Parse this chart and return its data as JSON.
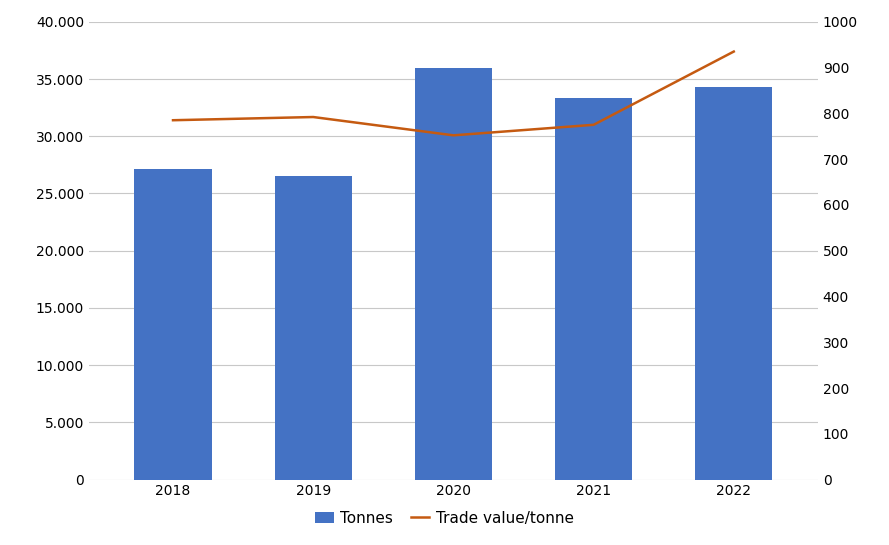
{
  "years": [
    "2018",
    "2019",
    "2020",
    "2021",
    "2022"
  ],
  "tonnes": [
    27100,
    26500,
    36000,
    33300,
    34300
  ],
  "trade_value": [
    785,
    792,
    752,
    775,
    935
  ],
  "bar_color": "#4472C4",
  "line_color": "#C55A11",
  "left_ylim": [
    0,
    40000
  ],
  "right_ylim": [
    0,
    1000
  ],
  "left_yticks": [
    0,
    5000,
    10000,
    15000,
    20000,
    25000,
    30000,
    35000,
    40000
  ],
  "right_yticks": [
    0,
    100,
    200,
    300,
    400,
    500,
    600,
    700,
    800,
    900,
    1000
  ],
  "legend_labels": [
    "Tonnes",
    "Trade value/tonne"
  ],
  "background_color": "#ffffff",
  "grid_color": "#c8c8c8",
  "bar_width": 0.55,
  "line_width": 1.8,
  "tick_fontsize": 10,
  "legend_fontsize": 11
}
